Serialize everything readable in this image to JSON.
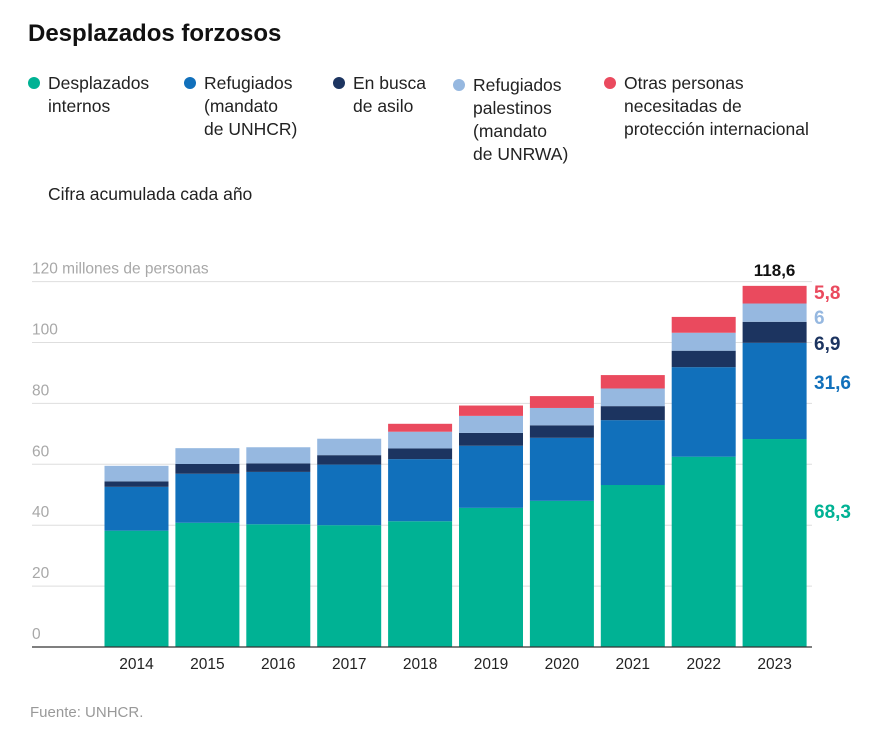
{
  "title": "Desplazados forzosos",
  "subtitle": "Cifra acumulada cada año",
  "source": "Fuente: UNHCR.",
  "legend": [
    {
      "label": "Desplazados\ninternos",
      "color": "#00b294"
    },
    {
      "label": "Refugiados\n(mandato\nde UNHCR)",
      "color": "#1170bb"
    },
    {
      "label": "En busca\nde asilo",
      "color": "#1c3460"
    },
    {
      "label": "Refugiados\npalestinos\n(mandato\nde UNRWA)",
      "color": "#96b8e0"
    },
    {
      "label": "Otras personas\nnecesitadas de\nprotección internacional",
      "color": "#ea4a5e"
    }
  ],
  "chart_data": {
    "type": "bar",
    "stacked": true,
    "title": "Desplazados forzosos",
    "ylabel": "millones de personas",
    "y_top_label": "120 millones de personas",
    "ylim": [
      0,
      120
    ],
    "yticks": [
      0,
      20,
      40,
      60,
      80,
      100,
      120
    ],
    "grid": true,
    "categories": [
      "2014",
      "2015",
      "2016",
      "2017",
      "2018",
      "2019",
      "2020",
      "2021",
      "2022",
      "2023"
    ],
    "series": [
      {
        "name": "Desplazados internos",
        "color": "#00b294",
        "values": [
          38.2,
          40.8,
          40.3,
          40.0,
          41.3,
          45.7,
          48.0,
          53.2,
          62.5,
          68.3
        ]
      },
      {
        "name": "Refugiados (mandato de UNHCR)",
        "color": "#1170bb",
        "values": [
          14.4,
          16.1,
          17.2,
          19.9,
          20.4,
          20.4,
          20.7,
          21.3,
          29.4,
          31.6
        ]
      },
      {
        "name": "En busca de asilo",
        "color": "#1c3460",
        "values": [
          1.8,
          3.2,
          2.8,
          3.1,
          3.5,
          4.2,
          4.1,
          4.6,
          5.4,
          6.9
        ]
      },
      {
        "name": "Refugiados palestinos (mandato de UNRWA)",
        "color": "#96b8e0",
        "values": [
          5.1,
          5.2,
          5.3,
          5.4,
          5.5,
          5.6,
          5.7,
          5.8,
          5.9,
          6.0
        ]
      },
      {
        "name": "Otras personas necesitadas de protección internacional",
        "color": "#ea4a5e",
        "values": [
          0,
          0,
          0,
          0,
          2.6,
          3.4,
          3.9,
          4.4,
          5.2,
          5.8
        ]
      }
    ],
    "annotations": {
      "total_2023": "118,6",
      "last_values": [
        "68,3",
        "31,6",
        "6,9",
        "6",
        "5,8"
      ]
    }
  }
}
